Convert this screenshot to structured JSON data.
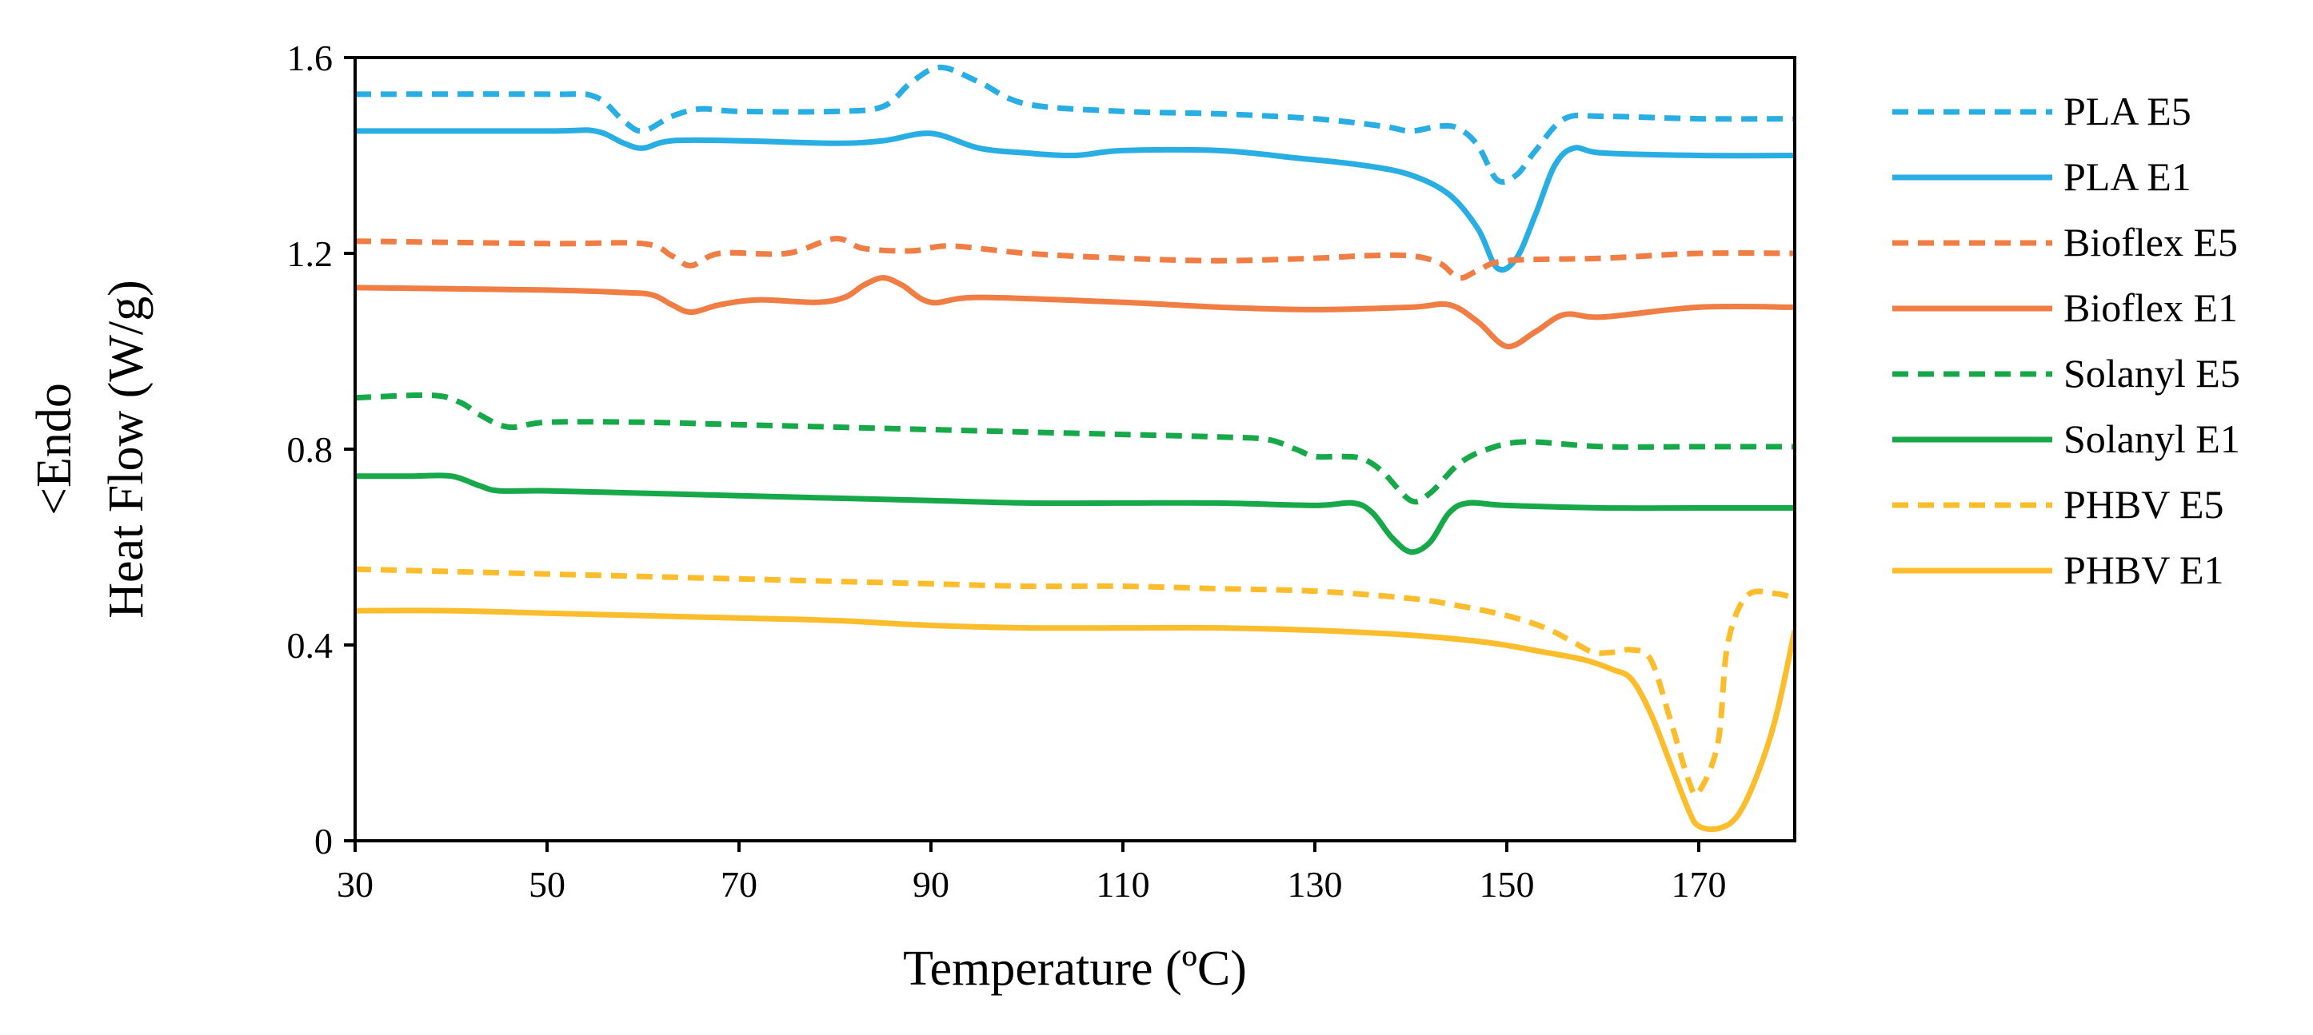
{
  "chart_data": {
    "type": "line",
    "title": "",
    "xlabel": "Temperature (ºC)",
    "ylabel_line1": "<Endo",
    "ylabel_line2": "Heat Flow (W/g)",
    "xlim": [
      30,
      180
    ],
    "ylim": [
      0,
      1.6
    ],
    "xticks": [
      30,
      50,
      70,
      90,
      110,
      130,
      150,
      170
    ],
    "yticks": [
      0,
      0.4,
      0.8,
      1.2,
      1.6
    ],
    "ytick_labels": [
      "0",
      "0.4",
      "0.8",
      "1.2",
      "1.6"
    ],
    "grid": false,
    "legend_position": "right",
    "series": [
      {
        "name": "PLA E5",
        "color": "#29aee3",
        "dashed": true,
        "points": [
          [
            30,
            1.525
          ],
          [
            50,
            1.525
          ],
          [
            55,
            1.52
          ],
          [
            58,
            1.47
          ],
          [
            60,
            1.45
          ],
          [
            63,
            1.48
          ],
          [
            66,
            1.495
          ],
          [
            70,
            1.49
          ],
          [
            80,
            1.49
          ],
          [
            85,
            1.5
          ],
          [
            88,
            1.55
          ],
          [
            91,
            1.58
          ],
          [
            95,
            1.55
          ],
          [
            100,
            1.505
          ],
          [
            110,
            1.49
          ],
          [
            120,
            1.485
          ],
          [
            130,
            1.475
          ],
          [
            137,
            1.46
          ],
          [
            140,
            1.45
          ],
          [
            143,
            1.46
          ],
          [
            145,
            1.455
          ],
          [
            147,
            1.42
          ],
          [
            149,
            1.35
          ],
          [
            151,
            1.36
          ],
          [
            153,
            1.41
          ],
          [
            156,
            1.475
          ],
          [
            160,
            1.48
          ],
          [
            170,
            1.475
          ],
          [
            180,
            1.475
          ]
        ]
      },
      {
        "name": "PLA E1",
        "color": "#29aee3",
        "dashed": false,
        "points": [
          [
            30,
            1.45
          ],
          [
            50,
            1.45
          ],
          [
            55,
            1.45
          ],
          [
            58,
            1.425
          ],
          [
            60,
            1.415
          ],
          [
            63,
            1.43
          ],
          [
            70,
            1.43
          ],
          [
            80,
            1.425
          ],
          [
            85,
            1.43
          ],
          [
            90,
            1.445
          ],
          [
            95,
            1.415
          ],
          [
            100,
            1.405
          ],
          [
            105,
            1.4
          ],
          [
            110,
            1.41
          ],
          [
            120,
            1.41
          ],
          [
            128,
            1.395
          ],
          [
            135,
            1.38
          ],
          [
            140,
            1.36
          ],
          [
            144,
            1.32
          ],
          [
            147,
            1.25
          ],
          [
            149,
            1.17
          ],
          [
            151,
            1.19
          ],
          [
            153,
            1.28
          ],
          [
            155,
            1.38
          ],
          [
            157,
            1.415
          ],
          [
            160,
            1.405
          ],
          [
            170,
            1.4
          ],
          [
            180,
            1.4
          ]
        ]
      },
      {
        "name": "Bioflex E5",
        "color": "#ef7d44",
        "dashed": true,
        "points": [
          [
            30,
            1.225
          ],
          [
            50,
            1.22
          ],
          [
            60,
            1.22
          ],
          [
            63,
            1.195
          ],
          [
            65,
            1.175
          ],
          [
            68,
            1.2
          ],
          [
            75,
            1.2
          ],
          [
            80,
            1.23
          ],
          [
            83,
            1.21
          ],
          [
            88,
            1.205
          ],
          [
            92,
            1.215
          ],
          [
            100,
            1.2
          ],
          [
            110,
            1.19
          ],
          [
            120,
            1.185
          ],
          [
            130,
            1.19
          ],
          [
            135,
            1.195
          ],
          [
            140,
            1.195
          ],
          [
            143,
            1.18
          ],
          [
            145,
            1.15
          ],
          [
            147,
            1.165
          ],
          [
            150,
            1.185
          ],
          [
            160,
            1.19
          ],
          [
            170,
            1.2
          ],
          [
            180,
            1.2
          ]
        ]
      },
      {
        "name": "Bioflex E1",
        "color": "#ef7d44",
        "dashed": false,
        "points": [
          [
            30,
            1.13
          ],
          [
            50,
            1.125
          ],
          [
            58,
            1.12
          ],
          [
            61,
            1.115
          ],
          [
            63,
            1.095
          ],
          [
            65,
            1.08
          ],
          [
            68,
            1.095
          ],
          [
            72,
            1.105
          ],
          [
            78,
            1.1
          ],
          [
            81,
            1.11
          ],
          [
            83,
            1.135
          ],
          [
            85,
            1.15
          ],
          [
            87,
            1.135
          ],
          [
            90,
            1.1
          ],
          [
            95,
            1.11
          ],
          [
            110,
            1.1
          ],
          [
            120,
            1.09
          ],
          [
            130,
            1.085
          ],
          [
            140,
            1.09
          ],
          [
            144,
            1.095
          ],
          [
            147,
            1.06
          ],
          [
            150,
            1.01
          ],
          [
            153,
            1.04
          ],
          [
            156,
            1.075
          ],
          [
            160,
            1.07
          ],
          [
            170,
            1.09
          ],
          [
            180,
            1.09
          ]
        ]
      },
      {
        "name": "Solanyl E5",
        "color": "#17a84a",
        "dashed": true,
        "points": [
          [
            30,
            0.905
          ],
          [
            38,
            0.91
          ],
          [
            41,
            0.895
          ],
          [
            43,
            0.87
          ],
          [
            46,
            0.845
          ],
          [
            50,
            0.855
          ],
          [
            60,
            0.855
          ],
          [
            70,
            0.85
          ],
          [
            80,
            0.845
          ],
          [
            90,
            0.84
          ],
          [
            100,
            0.835
          ],
          [
            110,
            0.83
          ],
          [
            120,
            0.825
          ],
          [
            125,
            0.82
          ],
          [
            128,
            0.8
          ],
          [
            130,
            0.785
          ],
          [
            133,
            0.785
          ],
          [
            135,
            0.78
          ],
          [
            137,
            0.755
          ],
          [
            140,
            0.695
          ],
          [
            142,
            0.71
          ],
          [
            145,
            0.77
          ],
          [
            148,
            0.8
          ],
          [
            152,
            0.815
          ],
          [
            160,
            0.805
          ],
          [
            170,
            0.805
          ],
          [
            180,
            0.805
          ]
        ]
      },
      {
        "name": "Solanyl E1",
        "color": "#17a84a",
        "dashed": false,
        "points": [
          [
            30,
            0.745
          ],
          [
            36,
            0.745
          ],
          [
            40,
            0.745
          ],
          [
            43,
            0.725
          ],
          [
            45,
            0.715
          ],
          [
            50,
            0.715
          ],
          [
            60,
            0.71
          ],
          [
            70,
            0.705
          ],
          [
            80,
            0.7
          ],
          [
            90,
            0.695
          ],
          [
            100,
            0.69
          ],
          [
            110,
            0.69
          ],
          [
            120,
            0.69
          ],
          [
            130,
            0.685
          ],
          [
            134,
            0.69
          ],
          [
            136,
            0.67
          ],
          [
            138,
            0.62
          ],
          [
            140,
            0.59
          ],
          [
            142,
            0.61
          ],
          [
            144,
            0.67
          ],
          [
            146,
            0.69
          ],
          [
            150,
            0.685
          ],
          [
            160,
            0.68
          ],
          [
            170,
            0.68
          ],
          [
            180,
            0.68
          ]
        ]
      },
      {
        "name": "PHBV E5",
        "color": "#fbbd2b",
        "dashed": true,
        "points": [
          [
            30,
            0.555
          ],
          [
            40,
            0.55
          ],
          [
            50,
            0.545
          ],
          [
            60,
            0.54
          ],
          [
            70,
            0.535
          ],
          [
            80,
            0.53
          ],
          [
            90,
            0.525
          ],
          [
            100,
            0.52
          ],
          [
            110,
            0.52
          ],
          [
            120,
            0.515
          ],
          [
            130,
            0.51
          ],
          [
            140,
            0.495
          ],
          [
            145,
            0.48
          ],
          [
            150,
            0.46
          ],
          [
            154,
            0.435
          ],
          [
            157,
            0.405
          ],
          [
            159,
            0.385
          ],
          [
            161,
            0.385
          ],
          [
            163,
            0.39
          ],
          [
            165,
            0.37
          ],
          [
            167,
            0.25
          ],
          [
            169,
            0.12
          ],
          [
            170,
            0.1
          ],
          [
            172,
            0.2
          ],
          [
            173,
            0.4
          ],
          [
            175,
            0.5
          ],
          [
            178,
            0.505
          ],
          [
            180,
            0.495
          ]
        ]
      },
      {
        "name": "PHBV E1",
        "color": "#fbbd2b",
        "dashed": false,
        "points": [
          [
            30,
            0.47
          ],
          [
            40,
            0.47
          ],
          [
            50,
            0.465
          ],
          [
            60,
            0.46
          ],
          [
            70,
            0.455
          ],
          [
            80,
            0.45
          ],
          [
            90,
            0.44
          ],
          [
            100,
            0.435
          ],
          [
            110,
            0.435
          ],
          [
            120,
            0.435
          ],
          [
            130,
            0.43
          ],
          [
            140,
            0.42
          ],
          [
            148,
            0.405
          ],
          [
            154,
            0.385
          ],
          [
            158,
            0.37
          ],
          [
            161,
            0.35
          ],
          [
            163,
            0.33
          ],
          [
            165,
            0.26
          ],
          [
            167,
            0.16
          ],
          [
            169,
            0.06
          ],
          [
            170,
            0.03
          ],
          [
            172,
            0.025
          ],
          [
            174,
            0.05
          ],
          [
            176,
            0.13
          ],
          [
            178,
            0.25
          ],
          [
            180,
            0.43
          ]
        ]
      }
    ]
  }
}
